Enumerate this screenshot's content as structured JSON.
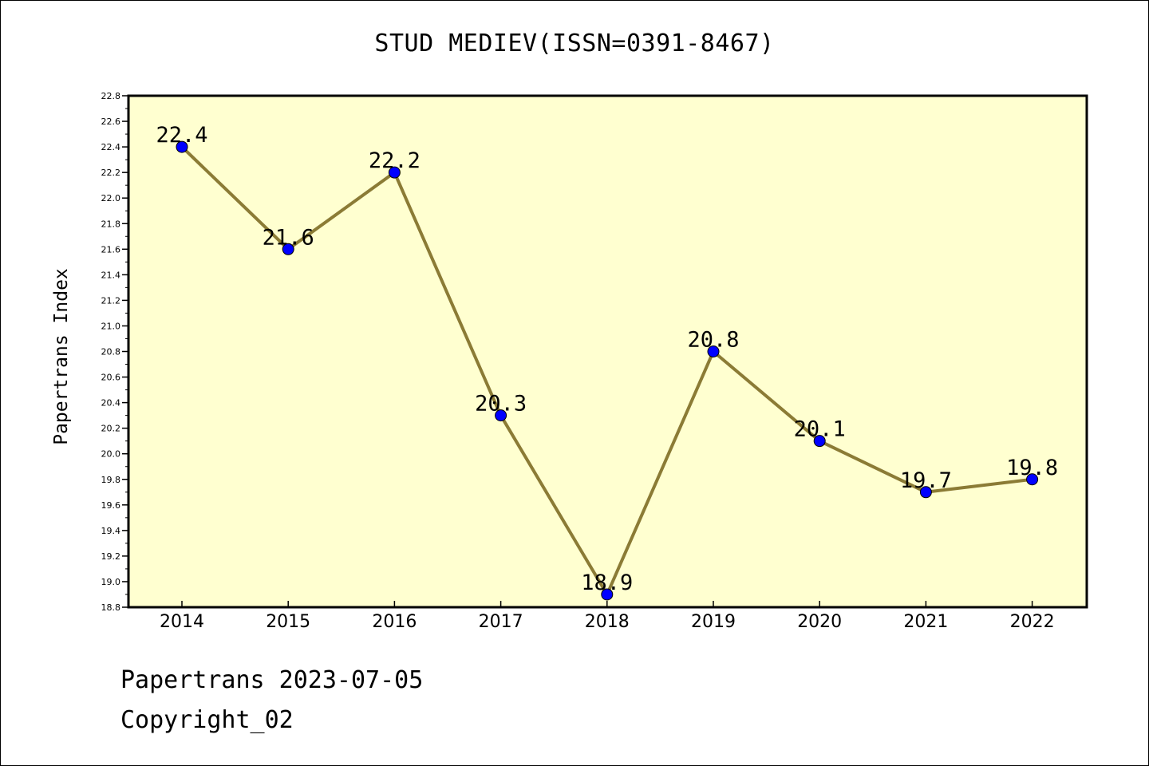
{
  "footer": {
    "date_line": "Papertrans 2023-07-05",
    "copyright": "Copyright_02"
  },
  "colors": {
    "plot_background": "#FFFFD0",
    "line": "#8B7B35",
    "marker": "#0000FF"
  },
  "chart_data": {
    "type": "line",
    "title": "STUD MEDIEV(ISSN=0391-8467)",
    "xlabel": "",
    "ylabel": "Papertrans Index",
    "x": [
      "2014",
      "2015",
      "2016",
      "2017",
      "2018",
      "2019",
      "2020",
      "2021",
      "2022"
    ],
    "series": [
      {
        "values": [
          22.4,
          21.6,
          22.2,
          20.3,
          18.9,
          20.8,
          20.1,
          19.7,
          19.8
        ]
      }
    ],
    "data_labels": [
      "22.4",
      "21.6",
      "22.2",
      "20.3",
      "18.9",
      "20.8",
      "20.1",
      "19.7",
      "19.8"
    ],
    "ylim": [
      18.8,
      22.8
    ],
    "yticks": [
      "18.8",
      "19.0",
      "19.2",
      "19.4",
      "19.6",
      "19.8",
      "20.0",
      "20.2",
      "20.4",
      "20.6",
      "20.8",
      "21.0",
      "21.2",
      "21.4",
      "21.6",
      "21.8",
      "22.0",
      "22.2",
      "22.4",
      "22.6",
      "22.8"
    ],
    "grid": false,
    "legend": "none"
  }
}
